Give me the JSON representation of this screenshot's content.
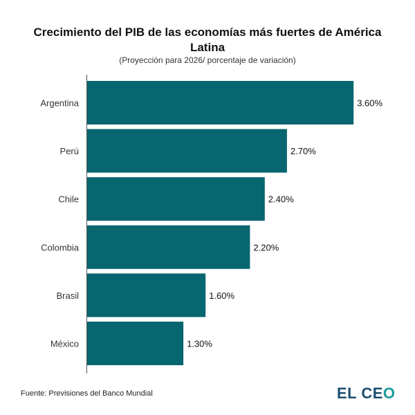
{
  "chart_data": {
    "type": "bar",
    "orientation": "horizontal",
    "title": "Crecimiento del PIB de las economías más fuertes de América Latina",
    "subtitle": "(Proyección para 2026/ porcentaje de variación)",
    "categories": [
      "Argentina",
      "Perú",
      "Chile",
      "Colombia",
      "Brasil",
      "México"
    ],
    "values": [
      3.6,
      2.7,
      2.4,
      2.2,
      1.6,
      1.3
    ],
    "data_labels": [
      "3.60%",
      "2.70%",
      "2.40%",
      "2.20%",
      "1.60%",
      "1.30%"
    ],
    "xlabel": "",
    "ylabel": "",
    "xlim": [
      0,
      4.3
    ],
    "grid": false,
    "bar_color": "#07666F"
  },
  "footer": {
    "source": "Fuente: Previsiones del Banco Mundial",
    "logo": "EL CEO"
  }
}
